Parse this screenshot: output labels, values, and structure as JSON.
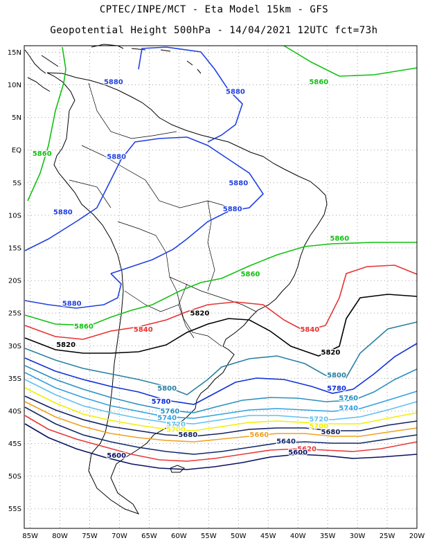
{
  "header": {
    "line1": "CPTEC/INPE/MCT -  Eta Model 15km - GFS",
    "line2": "Geopotential Height 500hPa - 14/04/2021 12UTC fct=73h"
  },
  "axes": {
    "lat_labels": [
      "15N",
      "10N",
      "5N",
      "EQ",
      "5S",
      "10S",
      "15S",
      "20S",
      "25S",
      "30S",
      "35S",
      "40S",
      "45S",
      "50S",
      "55S"
    ],
    "lon_labels": [
      "85W",
      "80W",
      "75W",
      "70W",
      "65W",
      "60W",
      "55W",
      "50W",
      "45W",
      "40W",
      "35W",
      "30W",
      "25W",
      "20W"
    ]
  },
  "colors": {
    "c5880": "#2040e0",
    "c5860": "#10c010",
    "c5840": "#e83030",
    "c5820": "#000000",
    "c5800": "#2880a0",
    "c5780": "#1030d8",
    "c5760": "#2890c0",
    "c5740": "#30a0e0",
    "c5720": "#60c0f0",
    "c5700": "#f0f000",
    "c5680": "#102060",
    "c5660": "#f0a020",
    "c5640": "#102868",
    "c5620": "#e83838",
    "c5600": "#081060"
  },
  "contour_labels": [
    {
      "text": "5880",
      "color": "c5880",
      "lon": -71,
      "lat": 10.5
    },
    {
      "text": "5880",
      "color": "c5880",
      "lon": -50.5,
      "lat": 9
    },
    {
      "text": "5880",
      "color": "c5880",
      "lon": -70.5,
      "lat": -1
    },
    {
      "text": "5880",
      "color": "c5880",
      "lon": -50,
      "lat": -5
    },
    {
      "text": "5880",
      "color": "c5880",
      "lon": -79.5,
      "lat": -9.5
    },
    {
      "text": "5880",
      "color": "c5880",
      "lon": -51,
      "lat": -9
    },
    {
      "text": "5880",
      "color": "c5880",
      "lon": -78,
      "lat": -23.5
    },
    {
      "text": "5860",
      "color": "c5860",
      "lon": -36.5,
      "lat": 10.5
    },
    {
      "text": "5860",
      "color": "c5860",
      "lon": -83,
      "lat": -0.5
    },
    {
      "text": "5860",
      "color": "c5860",
      "lon": -33,
      "lat": -13.5
    },
    {
      "text": "5860",
      "color": "c5860",
      "lon": -48,
      "lat": -19
    },
    {
      "text": "5860",
      "color": "c5860",
      "lon": -76,
      "lat": -27
    },
    {
      "text": "5840",
      "color": "c5840",
      "lon": -66,
      "lat": -27.5
    },
    {
      "text": "5840",
      "color": "c5840",
      "lon": -38,
      "lat": -27.5
    },
    {
      "text": "5820",
      "color": "c5820",
      "lon": -56.5,
      "lat": -25
    },
    {
      "text": "5820",
      "color": "c5820",
      "lon": -79,
      "lat": -29.8
    },
    {
      "text": "5820",
      "color": "c5820",
      "lon": -34.5,
      "lat": -31
    },
    {
      "text": "5800",
      "color": "c5800",
      "lon": -33.5,
      "lat": -34.5
    },
    {
      "text": "5800",
      "color": "c5800",
      "lon": -62,
      "lat": -36.5
    },
    {
      "text": "5780",
      "color": "c5780",
      "lon": -33.5,
      "lat": -36.5
    },
    {
      "text": "5780",
      "color": "c5780",
      "lon": -63,
      "lat": -38.5
    },
    {
      "text": "5760",
      "color": "c5760",
      "lon": -31.5,
      "lat": -38
    },
    {
      "text": "5760",
      "color": "c5760",
      "lon": -61.5,
      "lat": -40
    },
    {
      "text": "5740",
      "color": "c5740",
      "lon": -31.5,
      "lat": -39.5
    },
    {
      "text": "5740",
      "color": "c5740",
      "lon": -62,
      "lat": -41
    },
    {
      "text": "5720",
      "color": "c5720",
      "lon": -36.5,
      "lat": -41.2
    },
    {
      "text": "5720",
      "color": "c5720",
      "lon": -60.5,
      "lat": -42
    },
    {
      "text": "5700",
      "color": "c5700",
      "lon": -36.5,
      "lat": -42.3
    },
    {
      "text": "5700",
      "color": "c5700",
      "lon": -60.5,
      "lat": -42.8
    },
    {
      "text": "5680",
      "color": "c5680",
      "lon": -34.5,
      "lat": -43.2
    },
    {
      "text": "5680",
      "color": "c5680",
      "lon": -58.5,
      "lat": -43.6
    },
    {
      "text": "5660",
      "color": "c5660",
      "lon": -46.5,
      "lat": -43.6
    },
    {
      "text": "5640",
      "color": "c5640",
      "lon": -42,
      "lat": -44.6
    },
    {
      "text": "5620",
      "color": "c5620",
      "lon": -38.5,
      "lat": -45.8
    },
    {
      "text": "5600",
      "color": "c5600",
      "lon": -40,
      "lat": -46.3
    },
    {
      "text": "5600",
      "color": "c5600",
      "lon": -70.5,
      "lat": -46.8
    }
  ]
}
